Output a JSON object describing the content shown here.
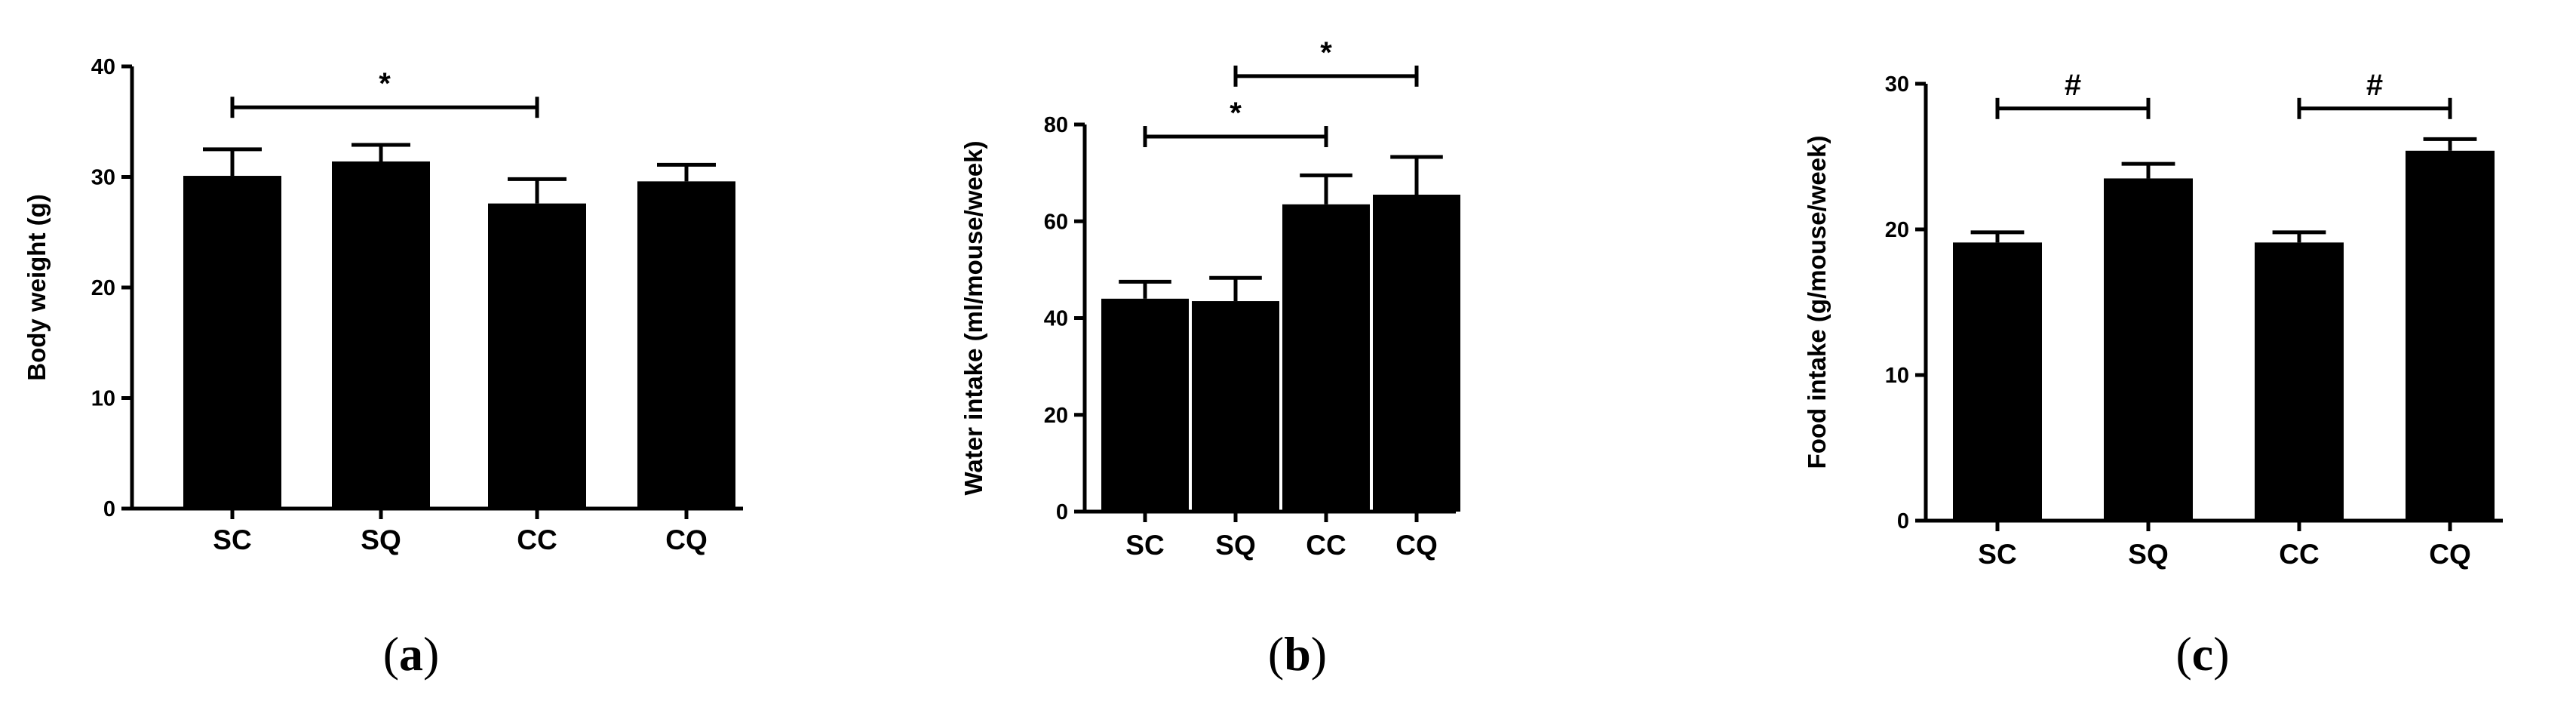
{
  "chart_data": [
    {
      "type": "bar",
      "panel_label": "a",
      "categories": [
        "SC",
        "SQ",
        "CC",
        "CQ"
      ],
      "values": [
        30.1,
        31.4,
        27.6,
        29.6
      ],
      "errors": [
        2.4,
        1.5,
        2.2,
        1.5
      ],
      "ylabel": "Body weight (g)",
      "ylim": [
        0,
        40
      ],
      "yticks": [
        0,
        10,
        20,
        30,
        40
      ],
      "significance": [
        {
          "from": "SC",
          "to": "CC",
          "symbol": "*",
          "y": 36.3
        }
      ]
    },
    {
      "type": "bar",
      "panel_label": "b",
      "categories": [
        "SC",
        "SQ",
        "CC",
        "CQ"
      ],
      "values": [
        44,
        43.5,
        63.5,
        65.5
      ],
      "errors": [
        3.5,
        4.8,
        6,
        7.8
      ],
      "ylabel": "Water intake (ml/mouse/week)",
      "ylim": [
        0,
        80
      ],
      "yticks": [
        0,
        20,
        40,
        60,
        80
      ],
      "significance": [
        {
          "from": "SC",
          "to": "CC",
          "symbol": "*",
          "y": 77.5
        },
        {
          "from": "SQ",
          "to": "CQ",
          "symbol": "*",
          "y": 90
        }
      ]
    },
    {
      "type": "bar",
      "panel_label": "c",
      "categories": [
        "SC",
        "SQ",
        "CC",
        "CQ"
      ],
      "values": [
        19.1,
        23.5,
        19.1,
        25.4
      ],
      "errors": [
        0.7,
        1.0,
        0.7,
        0.8
      ],
      "ylabel": "Food intake (g/mouse/week)",
      "ylim": [
        0,
        30
      ],
      "yticks": [
        0,
        10,
        20,
        30
      ],
      "significance": [
        {
          "from": "SC",
          "to": "SQ",
          "symbol": "#",
          "y": 28.3
        },
        {
          "from": "CC",
          "to": "CQ",
          "symbol": "#",
          "y": 28.3
        }
      ]
    }
  ]
}
